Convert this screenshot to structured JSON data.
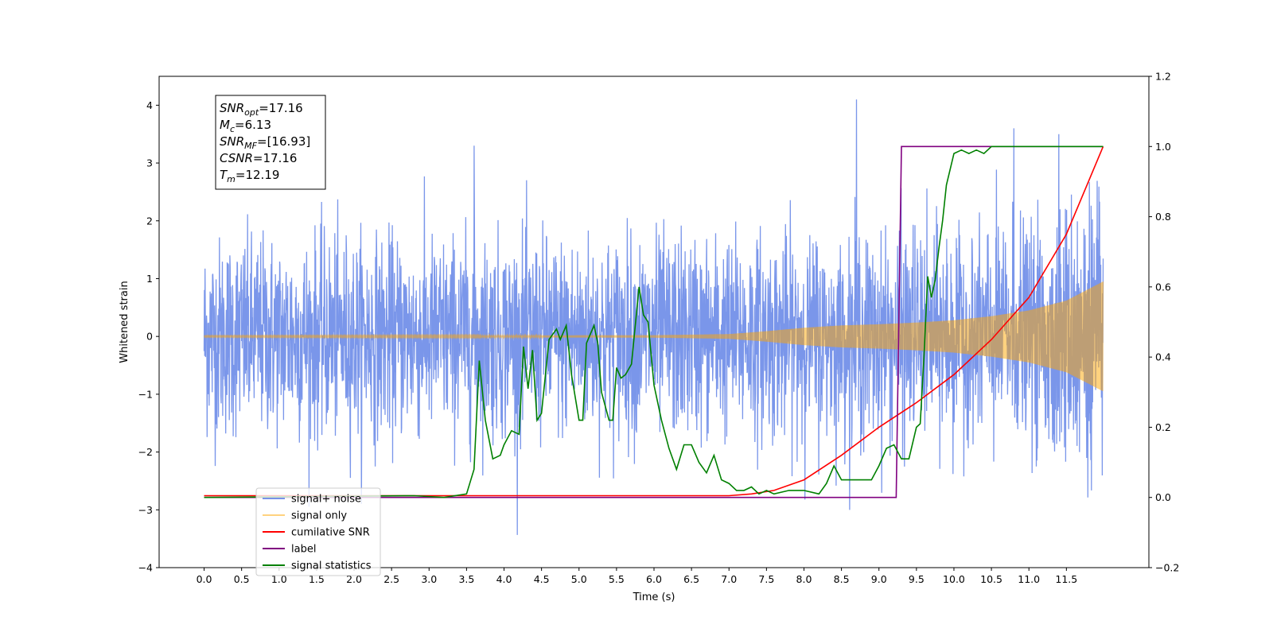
{
  "chart_data": {
    "type": "line",
    "xlabel": "Time (s)",
    "ylabel": "Whitened strain",
    "xlim": [
      -0.6,
      12.6
    ],
    "ylim": [
      -4,
      4.5
    ],
    "y2lim": [
      -0.2,
      1.2
    ],
    "x_ticks": [
      "0.0",
      "0.5",
      "1.0",
      "1.5",
      "2.0",
      "2.5",
      "3.0",
      "3.5",
      "4.0",
      "4.5",
      "5.0",
      "5.5",
      "6.0",
      "6.5",
      "7.0",
      "7.5",
      "8.0",
      "8.5",
      "9.0",
      "9.5",
      "10.0",
      "10.5",
      "11.0",
      "11.5"
    ],
    "y_ticks": [
      "4",
      "3",
      "2",
      "1",
      "0",
      "−1",
      "−2",
      "−3",
      "−4"
    ],
    "y2_ticks": [
      "1.2",
      "1.0",
      "0.8",
      "0.6",
      "0.4",
      "0.2",
      "0.0",
      "−0.2"
    ],
    "grid": false,
    "legend_position": "lower-left",
    "annotation": [
      {
        "base": "SNR",
        "sub": "opt",
        "value": "=17.16"
      },
      {
        "base": "M",
        "sub": "c",
        "value": "=6.13"
      },
      {
        "base": "SNR",
        "sub": "MF",
        "value": "=[16.93]"
      },
      {
        "base": "CSNR",
        "sub": "",
        "value": "=17.16"
      },
      {
        "base": "T",
        "sub": "m",
        "value": "=12.19"
      }
    ],
    "series": [
      {
        "name": "signal+ noise",
        "color": "#4169e1",
        "axis": "left",
        "kind": "noise",
        "x_range": [
          0.0,
          11.99
        ],
        "envelope_sigma": 0.85,
        "peak_values": {
          "8.7": 4.1,
          "10.8": 3.6,
          "11.4": 3.5,
          "3.6": 3.3
        }
      },
      {
        "name": "signal only",
        "color": "#ffa500",
        "axis": "left",
        "kind": "chirp_envelope",
        "x": [
          0.0,
          6.0,
          7.0,
          7.5,
          8.0,
          8.5,
          9.0,
          9.5,
          10.0,
          10.5,
          11.0,
          11.5,
          11.99
        ],
        "y": [
          0.01,
          0.02,
          0.04,
          0.09,
          0.15,
          0.19,
          0.21,
          0.24,
          0.28,
          0.35,
          0.45,
          0.62,
          0.95
        ]
      },
      {
        "name": "cumilative SNR",
        "color": "#ff0000",
        "axis": "right",
        "x": [
          0.0,
          7.0,
          7.3,
          7.6,
          8.0,
          8.5,
          9.0,
          9.5,
          10.0,
          10.5,
          11.0,
          11.5,
          11.99
        ],
        "y": [
          0.005,
          0.005,
          0.01,
          0.02,
          0.05,
          0.12,
          0.2,
          0.27,
          0.35,
          0.45,
          0.57,
          0.75,
          1.0
        ]
      },
      {
        "name": "label",
        "color": "#800080",
        "axis": "right",
        "x": [
          0.0,
          9.23,
          9.3,
          11.99
        ],
        "y": [
          0.0,
          0.0,
          1.0,
          1.0
        ]
      },
      {
        "name": "signal statistics",
        "color": "#008000",
        "axis": "right",
        "x": [
          0.0,
          2.8,
          3.2,
          3.5,
          3.6,
          3.67,
          3.75,
          3.85,
          3.95,
          4.0,
          4.1,
          4.2,
          4.26,
          4.32,
          4.38,
          4.44,
          4.5,
          4.6,
          4.7,
          4.75,
          4.83,
          4.9,
          5.0,
          5.05,
          5.1,
          5.2,
          5.25,
          5.3,
          5.4,
          5.45,
          5.5,
          5.56,
          5.62,
          5.7,
          5.8,
          5.86,
          5.92,
          6.0,
          6.1,
          6.2,
          6.3,
          6.4,
          6.5,
          6.6,
          6.7,
          6.8,
          6.9,
          7.0,
          7.1,
          7.2,
          7.3,
          7.4,
          7.5,
          7.6,
          7.8,
          8.0,
          8.2,
          8.3,
          8.4,
          8.5,
          8.6,
          8.8,
          8.9,
          9.0,
          9.1,
          9.2,
          9.3,
          9.4,
          9.5,
          9.55,
          9.6,
          9.65,
          9.7,
          9.75,
          9.8,
          9.85,
          9.9,
          10.0,
          10.1,
          10.2,
          10.3,
          10.4,
          10.5,
          11.0,
          11.99
        ],
        "y": [
          0.0,
          0.005,
          0.0,
          0.01,
          0.08,
          0.39,
          0.22,
          0.11,
          0.12,
          0.15,
          0.19,
          0.18,
          0.43,
          0.31,
          0.42,
          0.22,
          0.24,
          0.45,
          0.48,
          0.45,
          0.49,
          0.35,
          0.22,
          0.22,
          0.44,
          0.49,
          0.44,
          0.3,
          0.22,
          0.22,
          0.37,
          0.34,
          0.35,
          0.38,
          0.6,
          0.52,
          0.5,
          0.32,
          0.22,
          0.14,
          0.08,
          0.15,
          0.15,
          0.1,
          0.07,
          0.12,
          0.05,
          0.04,
          0.02,
          0.02,
          0.03,
          0.01,
          0.02,
          0.01,
          0.02,
          0.02,
          0.01,
          0.04,
          0.09,
          0.05,
          0.05,
          0.05,
          0.05,
          0.09,
          0.14,
          0.15,
          0.11,
          0.11,
          0.2,
          0.21,
          0.4,
          0.63,
          0.57,
          0.62,
          0.71,
          0.79,
          0.89,
          0.98,
          0.99,
          0.98,
          0.99,
          0.98,
          1.0,
          1.0,
          1.0
        ]
      }
    ]
  }
}
